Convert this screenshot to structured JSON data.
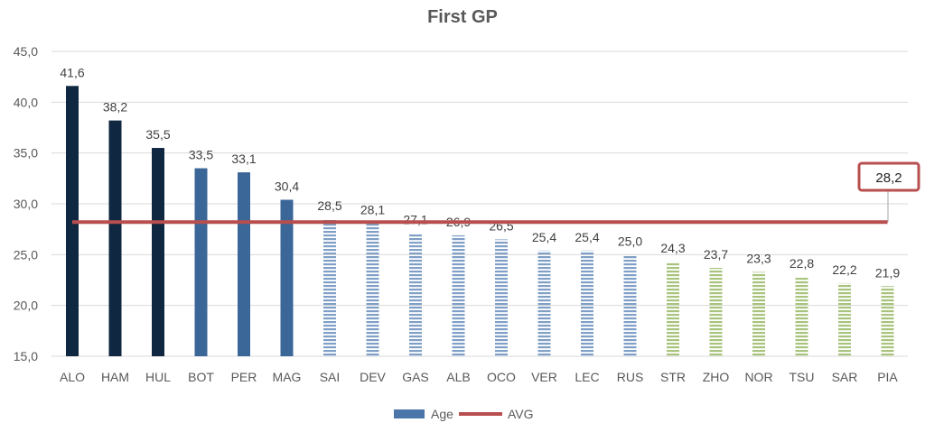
{
  "chart_data": {
    "type": "bar",
    "title": "First GP",
    "xlabel": "",
    "ylabel": "",
    "ylim": [
      15,
      45
    ],
    "yticks": [
      "15,0",
      "20,0",
      "25,0",
      "30,0",
      "35,0",
      "40,0",
      "45,0"
    ],
    "ytick_values": [
      15,
      20,
      25,
      30,
      35,
      40,
      45
    ],
    "grid": true,
    "legend_position": "bottom",
    "categories": [
      "ALO",
      "HAM",
      "HUL",
      "BOT",
      "PER",
      "MAG",
      "SAI",
      "DEV",
      "GAS",
      "ALB",
      "OCO",
      "VER",
      "LEC",
      "RUS",
      "STR",
      "ZHO",
      "NOR",
      "TSU",
      "SAR",
      "PIA"
    ],
    "series": [
      {
        "name": "Age",
        "type": "bar",
        "values": [
          41.6,
          38.2,
          35.5,
          33.5,
          33.1,
          30.4,
          28.5,
          28.1,
          27.1,
          26.9,
          26.5,
          25.4,
          25.4,
          25.0,
          24.3,
          23.7,
          23.3,
          22.8,
          22.2,
          21.9
        ],
        "labels": [
          "41,6",
          "38,2",
          "35,5",
          "33,5",
          "33,1",
          "30,4",
          "28,5",
          "28,1",
          "27,1",
          "26,9",
          "26,5",
          "25,4",
          "25,4",
          "25,0",
          "24,3",
          "23,7",
          "23,3",
          "22,8",
          "22,2",
          "21,9"
        ],
        "groups": [
          "dark",
          "dark",
          "dark",
          "mid",
          "mid",
          "mid",
          "light",
          "light",
          "light",
          "light",
          "light",
          "light",
          "light",
          "light",
          "green",
          "green",
          "green",
          "green",
          "green",
          "green"
        ]
      },
      {
        "name": "AVG",
        "type": "line",
        "value": 28.2,
        "label": "28,2"
      }
    ],
    "colors": {
      "dark": "#0f2741",
      "mid": "#3b6698",
      "light": "#7f9fc6",
      "green": "#a8c37c",
      "avg": "#b84f4f",
      "legend_age": "#4a76aa"
    }
  }
}
